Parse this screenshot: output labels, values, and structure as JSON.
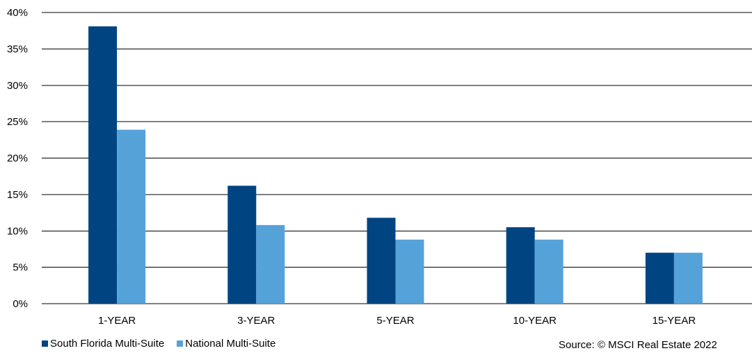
{
  "chart_data": {
    "type": "bar",
    "categories": [
      "1-YEAR",
      "3-YEAR",
      "5-YEAR",
      "10-YEAR",
      "15-YEAR"
    ],
    "series": [
      {
        "name": "South Florida Multi-Suite",
        "color": "#004482",
        "values": [
          38.1,
          16.2,
          11.8,
          10.5,
          7.0
        ]
      },
      {
        "name": "National Multi-Suite",
        "color": "#55a2d9",
        "values": [
          23.9,
          10.8,
          8.8,
          8.8,
          7.0
        ]
      }
    ],
    "y_ticks": [
      "0%",
      "5%",
      "10%",
      "15%",
      "20%",
      "25%",
      "30%",
      "35%",
      "40%"
    ],
    "ylim": [
      0,
      40
    ],
    "y_unit": "%",
    "grid": true,
    "legend_position": "bottom-left",
    "xlabel": "",
    "ylabel": "",
    "source": "Source: © MSCI Real Estate 2022"
  }
}
